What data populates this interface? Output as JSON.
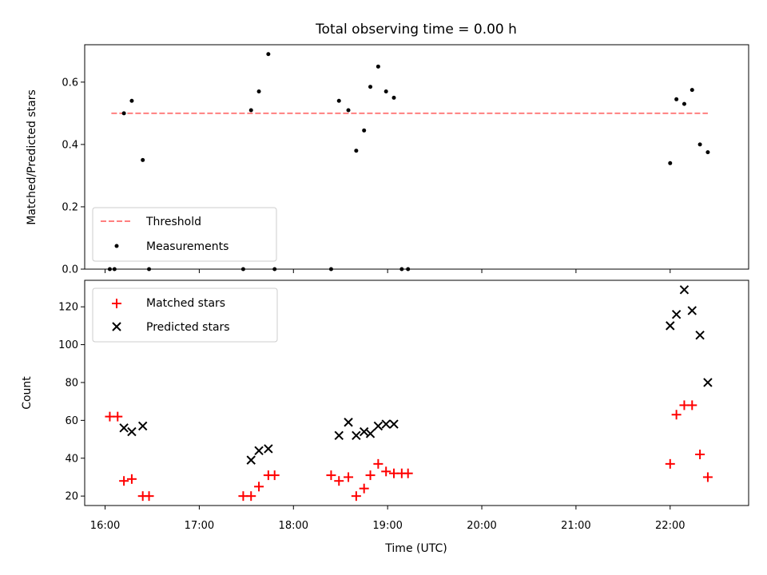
{
  "chart_data": [
    {
      "type": "scatter",
      "title": "Total observing time = 0.00 h",
      "ylabel": "Matched/Predicted stars",
      "xlabel": "",
      "xlim": [
        "15:47",
        "22:50"
      ],
      "ylim": [
        0,
        0.72
      ],
      "yticks": [
        "0.0",
        "0.2",
        "0.4",
        "0.6"
      ],
      "legend": {
        "placement": "lower-left"
      },
      "series": [
        {
          "name": "Threshold",
          "kind": "dashed-line",
          "color": "#ff7f7f",
          "x": [
            "16:04",
            "22:24"
          ],
          "y": [
            0.5,
            0.5
          ]
        },
        {
          "name": "Measurements",
          "kind": "points",
          "color": "#000000",
          "x": [
            "16:03",
            "16:06",
            "16:12",
            "16:17",
            "16:24",
            "16:28",
            "17:28",
            "17:33",
            "17:38",
            "17:44",
            "17:48",
            "18:24",
            "18:29",
            "18:35",
            "18:40",
            "18:45",
            "18:49",
            "18:54",
            "18:59",
            "19:04",
            "19:09",
            "19:13",
            "22:00",
            "22:04",
            "22:09",
            "22:14",
            "22:19",
            "22:24"
          ],
          "y": [
            0,
            0,
            0.5,
            0.54,
            0.35,
            0,
            0,
            0.51,
            0.57,
            0.69,
            0,
            0,
            0.54,
            0.51,
            0.38,
            0.445,
            0.585,
            0.65,
            0.57,
            0.55,
            0,
            0,
            0.34,
            0.545,
            0.53,
            0.575,
            0.4,
            0.375
          ]
        }
      ]
    },
    {
      "type": "scatter",
      "title": "",
      "xlabel": "Time (UTC)",
      "ylabel": "Count",
      "xlim": [
        "15:47",
        "22:50"
      ],
      "ylim": [
        15,
        134
      ],
      "xticks": [
        "16:00",
        "17:00",
        "18:00",
        "19:00",
        "20:00",
        "21:00",
        "22:00"
      ],
      "yticks": [
        "20",
        "40",
        "60",
        "80",
        "100",
        "120"
      ],
      "legend": {
        "placement": "top-left"
      },
      "series": [
        {
          "name": "Matched stars",
          "marker": "+",
          "color": "#ff0000",
          "x": [
            "16:03",
            "16:08",
            "16:12",
            "16:17",
            "16:24",
            "16:28",
            "17:28",
            "17:33",
            "17:38",
            "17:44",
            "17:48",
            "18:24",
            "18:29",
            "18:35",
            "18:40",
            "18:45",
            "18:49",
            "18:54",
            "18:59",
            "19:04",
            "19:09",
            "19:13",
            "22:00",
            "22:04",
            "22:09",
            "22:14",
            "22:19",
            "22:24"
          ],
          "y": [
            62,
            62,
            28,
            29,
            20,
            20,
            20,
            20,
            25,
            31,
            31,
            31,
            28,
            30,
            20,
            24,
            31,
            37,
            33,
            32,
            32,
            32,
            37,
            63,
            68,
            68,
            42,
            30
          ]
        },
        {
          "name": "Predicted stars",
          "marker": "x",
          "color": "#000000",
          "x": [
            "16:12",
            "16:17",
            "16:24",
            "17:33",
            "17:38",
            "17:44",
            "18:29",
            "18:35",
            "18:40",
            "18:45",
            "18:49",
            "18:54",
            "18:59",
            "19:04",
            "22:00",
            "22:04",
            "22:09",
            "22:14",
            "22:19",
            "22:24"
          ],
          "y": [
            56,
            54,
            57,
            39,
            44,
            45,
            52,
            59,
            52,
            54,
            53,
            57,
            58,
            58,
            110,
            116,
            129,
            118,
            105,
            80
          ]
        }
      ]
    }
  ]
}
